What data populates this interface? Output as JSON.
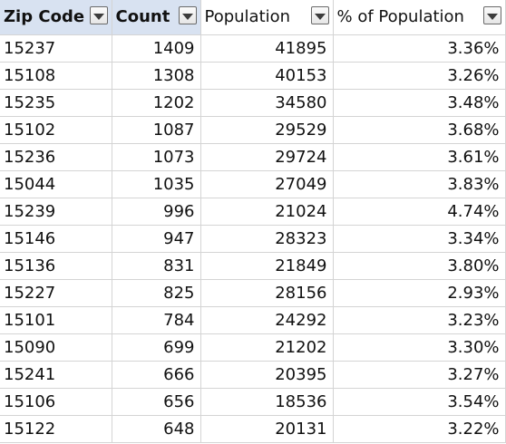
{
  "columns": [
    {
      "label": "Zip Code",
      "bold": true
    },
    {
      "label": "Count",
      "bold": true
    },
    {
      "label": "Population",
      "bold": false
    },
    {
      "label": "% of Population",
      "bold": false
    }
  ],
  "rows": [
    [
      "15237",
      "1409",
      "41895",
      "3.36%"
    ],
    [
      "15108",
      "1308",
      "40153",
      "3.26%"
    ],
    [
      "15235",
      "1202",
      "34580",
      "3.48%"
    ],
    [
      "15102",
      "1087",
      "29529",
      "3.68%"
    ],
    [
      "15236",
      "1073",
      "29724",
      "3.61%"
    ],
    [
      "15044",
      "1035",
      "27049",
      "3.83%"
    ],
    [
      "15239",
      "996",
      "21024",
      "4.74%"
    ],
    [
      "15146",
      "947",
      "28323",
      "3.34%"
    ],
    [
      "15136",
      "831",
      "21849",
      "3.80%"
    ],
    [
      "15227",
      "825",
      "28156",
      "2.93%"
    ],
    [
      "15101",
      "784",
      "24292",
      "3.23%"
    ],
    [
      "15090",
      "699",
      "21202",
      "3.30%"
    ],
    [
      "15241",
      "666",
      "20395",
      "3.27%"
    ],
    [
      "15106",
      "656",
      "18536",
      "3.54%"
    ],
    [
      "15122",
      "648",
      "20131",
      "3.22%"
    ]
  ],
  "colors": {
    "header_fill": "#d8e2f1",
    "gridline": "#d4d4d4"
  },
  "icons": {
    "filter": "chevron-down-icon"
  }
}
